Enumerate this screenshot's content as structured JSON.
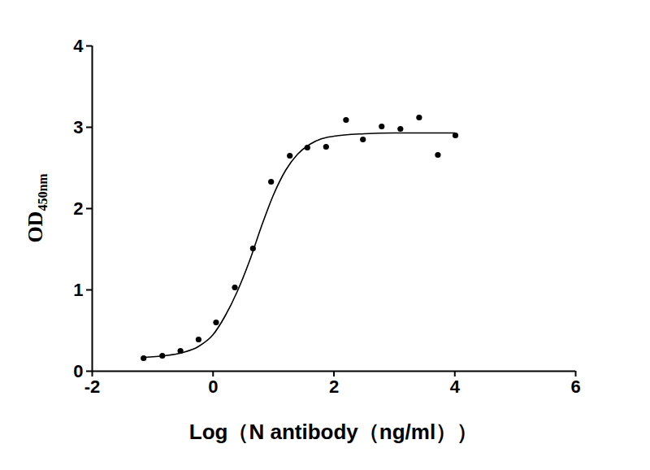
{
  "chart_data": {
    "type": "scatter",
    "xlabel": "Log（N antibody（ng/ml））",
    "ylabel": "OD450nm",
    "xlim": [
      -2,
      6
    ],
    "xticks": [
      -2,
      0,
      2,
      4,
      6
    ],
    "ylim": [
      0,
      4
    ],
    "yticks": [
      0,
      1,
      2,
      3,
      4
    ],
    "grid": false,
    "series": [
      {
        "type": "scatter",
        "marker": "circle",
        "color": "#000000",
        "x": [
          -1.15,
          -0.84,
          -0.54,
          -0.24,
          0.05,
          0.36,
          0.66,
          0.96,
          1.27,
          1.56,
          1.87,
          2.2,
          2.48,
          2.79,
          3.1,
          3.41,
          3.72,
          4.01
        ],
        "values": [
          0.16,
          0.19,
          0.25,
          0.39,
          0.6,
          1.03,
          1.51,
          2.33,
          2.65,
          2.75,
          2.76,
          3.09,
          2.85,
          3.01,
          2.98,
          3.12,
          2.66,
          2.9
        ]
      },
      {
        "type": "line",
        "line_style": "solid",
        "color": "#000000",
        "x": [
          -1.15,
          -0.8,
          -0.5,
          -0.25,
          0,
          0.2,
          0.4,
          0.6,
          0.8,
          1.0,
          1.2,
          1.4,
          1.6,
          1.8,
          2.0,
          2.5,
          3.0,
          3.5,
          4.0
        ],
        "values": [
          0.17,
          0.19,
          0.23,
          0.3,
          0.45,
          0.68,
          0.98,
          1.35,
          1.78,
          2.17,
          2.47,
          2.67,
          2.79,
          2.86,
          2.89,
          2.92,
          2.93,
          2.93,
          2.93
        ]
      }
    ]
  }
}
